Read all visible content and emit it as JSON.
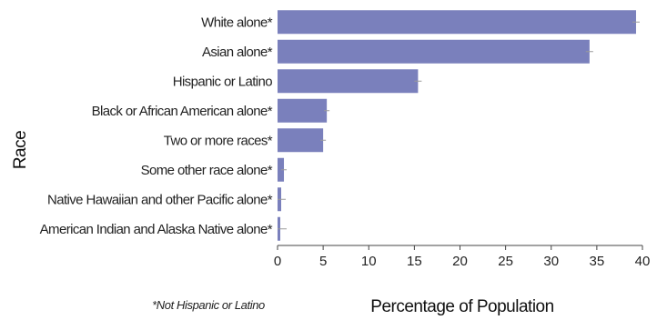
{
  "chart_data": {
    "type": "bar",
    "orientation": "horizontal",
    "categories": [
      "White alone*",
      "Asian alone*",
      "Hispanic or Latino",
      "Black or African American alone*",
      "Two or more races*",
      "Some other race alone*",
      "Native Hawaiian and other Pacific alone*",
      "American Indian and Alaska Native alone*"
    ],
    "values": [
      39.3,
      34.2,
      15.4,
      5.4,
      5.0,
      0.7,
      0.4,
      0.3
    ],
    "error": [
      0.4,
      0.4,
      0.4,
      0.3,
      0.3,
      0.3,
      0.5,
      0.7
    ],
    "xlabel": "Percentage of Population",
    "ylabel": "Race",
    "xlim": [
      0,
      40
    ],
    "xticks": [
      "0",
      "5",
      "10",
      "15",
      "20",
      "25",
      "30",
      "35",
      "40"
    ],
    "bar_color": "#7a80bc",
    "error_color": "#9a9a9a",
    "grid": false,
    "footnote": "*Not Hispanic or Latino"
  }
}
